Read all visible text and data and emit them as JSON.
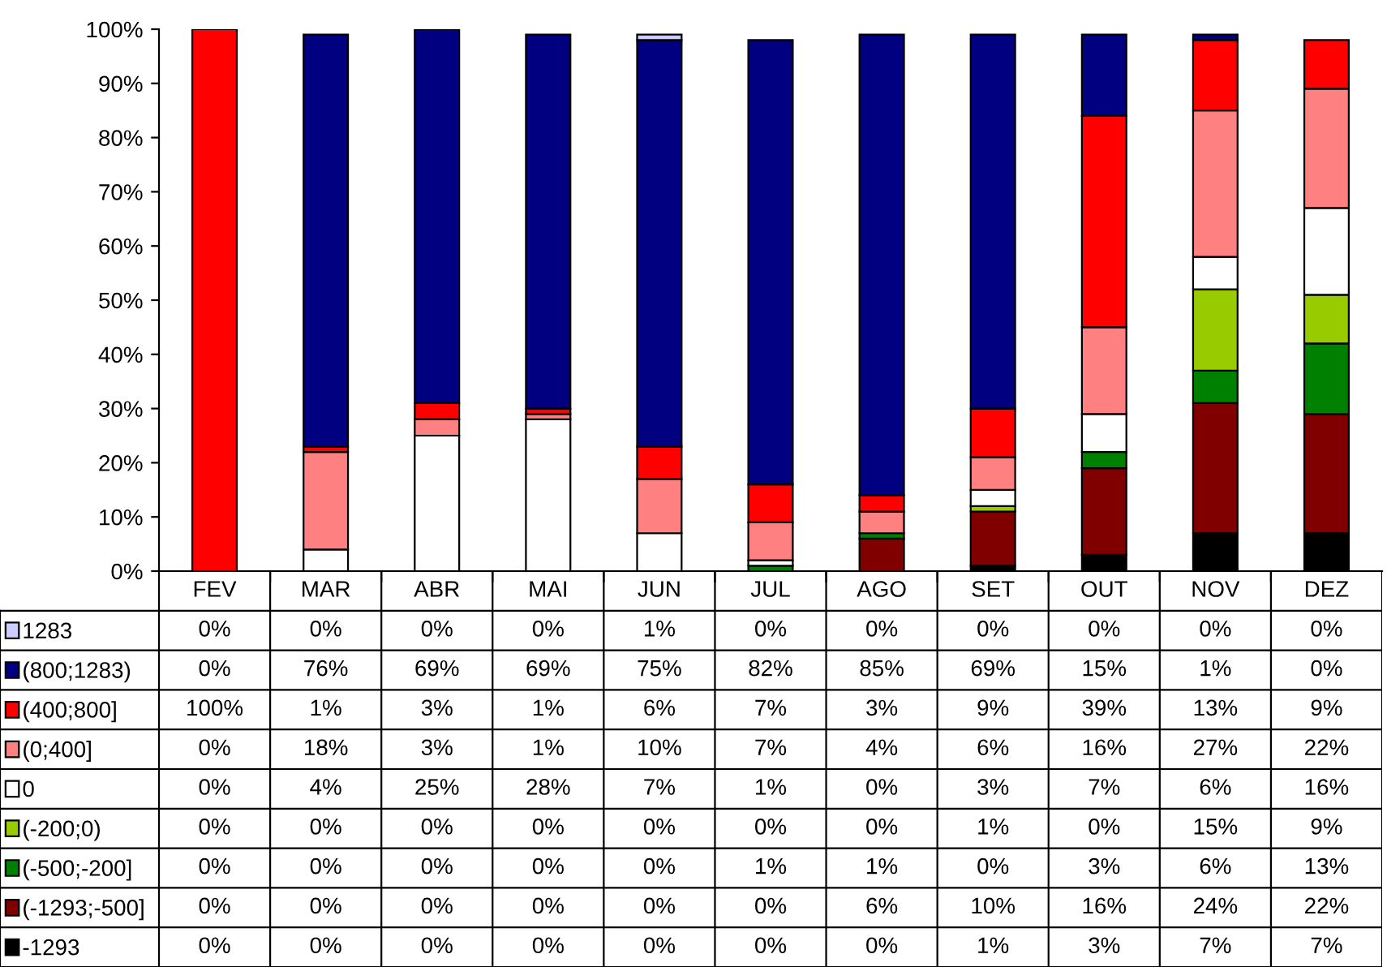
{
  "chart_data": {
    "type": "bar",
    "stacked": true,
    "grid": false,
    "legend": "bottom left",
    "categories": [
      "FEV",
      "MAR",
      "ABR",
      "MAI",
      "JUN",
      "JUL",
      "AGO",
      "SET",
      "OUT",
      "NOV",
      "DEZ"
    ],
    "ylim": [
      0,
      100
    ],
    "yticks": [
      {
        "value": 0,
        "label": "0%"
      },
      {
        "value": 10,
        "label": "10%"
      },
      {
        "value": 20,
        "label": "20%"
      },
      {
        "value": 30,
        "label": "30%"
      },
      {
        "value": 40,
        "label": "40%"
      },
      {
        "value": 50,
        "label": "50%"
      },
      {
        "value": 60,
        "label": "60%"
      },
      {
        "value": 70,
        "label": "70%"
      },
      {
        "value": 80,
        "label": "80%"
      },
      {
        "value": 90,
        "label": "90%"
      },
      {
        "value": 100,
        "label": "100%"
      }
    ],
    "series": [
      {
        "name": "-1293",
        "color": "#000000",
        "values": [
          0,
          0,
          0,
          0,
          0,
          0,
          0,
          1,
          3,
          7,
          7
        ],
        "value_labels": [
          "0%",
          "0%",
          "0%",
          "0%",
          "0%",
          "0%",
          "0%",
          "1%",
          "3%",
          "7%",
          "7%"
        ]
      },
      {
        "name": "(-1293;-500]",
        "color": "#800000",
        "values": [
          0,
          0,
          0,
          0,
          0,
          0,
          6,
          10,
          16,
          24,
          22
        ],
        "value_labels": [
          "0%",
          "0%",
          "0%",
          "0%",
          "0%",
          "0%",
          "6%",
          "10%",
          "16%",
          "24%",
          "22%"
        ]
      },
      {
        "name": "(-500;-200]",
        "color": "#008000",
        "values": [
          0,
          0,
          0,
          0,
          0,
          1,
          1,
          0,
          3,
          6,
          13
        ],
        "value_labels": [
          "0%",
          "0%",
          "0%",
          "0%",
          "0%",
          "1%",
          "1%",
          "0%",
          "3%",
          "6%",
          "13%"
        ]
      },
      {
        "name": "(-200;0)",
        "color": "#99cc00",
        "values": [
          0,
          0,
          0,
          0,
          0,
          0,
          0,
          1,
          0,
          15,
          9
        ],
        "value_labels": [
          "0%",
          "0%",
          "0%",
          "0%",
          "0%",
          "0%",
          "0%",
          "1%",
          "0%",
          "15%",
          "9%"
        ]
      },
      {
        "name": "0",
        "color": "#ffffff",
        "values": [
          0,
          4,
          25,
          28,
          7,
          1,
          0,
          3,
          7,
          6,
          16
        ],
        "value_labels": [
          "0%",
          "4%",
          "25%",
          "28%",
          "7%",
          "1%",
          "0%",
          "3%",
          "7%",
          "6%",
          "16%"
        ]
      },
      {
        "name": "(0;400]",
        "color": "#ff8080",
        "values": [
          0,
          18,
          3,
          1,
          10,
          7,
          4,
          6,
          16,
          27,
          22
        ],
        "value_labels": [
          "0%",
          "18%",
          "3%",
          "1%",
          "10%",
          "7%",
          "4%",
          "6%",
          "16%",
          "27%",
          "22%"
        ]
      },
      {
        "name": "(400;800]",
        "color": "#ff0000",
        "values": [
          100,
          1,
          3,
          1,
          6,
          7,
          3,
          9,
          39,
          13,
          9
        ],
        "value_labels": [
          "100%",
          "1%",
          "3%",
          "1%",
          "6%",
          "7%",
          "3%",
          "9%",
          "39%",
          "13%",
          "9%"
        ]
      },
      {
        "name": "(800;1283)",
        "color": "#000080",
        "values": [
          0,
          76,
          69,
          69,
          75,
          82,
          85,
          69,
          15,
          1,
          0
        ],
        "value_labels": [
          "0%",
          "76%",
          "69%",
          "69%",
          "75%",
          "82%",
          "85%",
          "69%",
          "15%",
          "1%",
          "0%"
        ]
      },
      {
        "name": "1283",
        "color": "#ccccff",
        "values": [
          0,
          0,
          0,
          0,
          1,
          0,
          0,
          0,
          0,
          0,
          0
        ],
        "value_labels": [
          "0%",
          "0%",
          "0%",
          "0%",
          "1%",
          "0%",
          "0%",
          "0%",
          "0%",
          "0%",
          "0%"
        ]
      }
    ]
  }
}
